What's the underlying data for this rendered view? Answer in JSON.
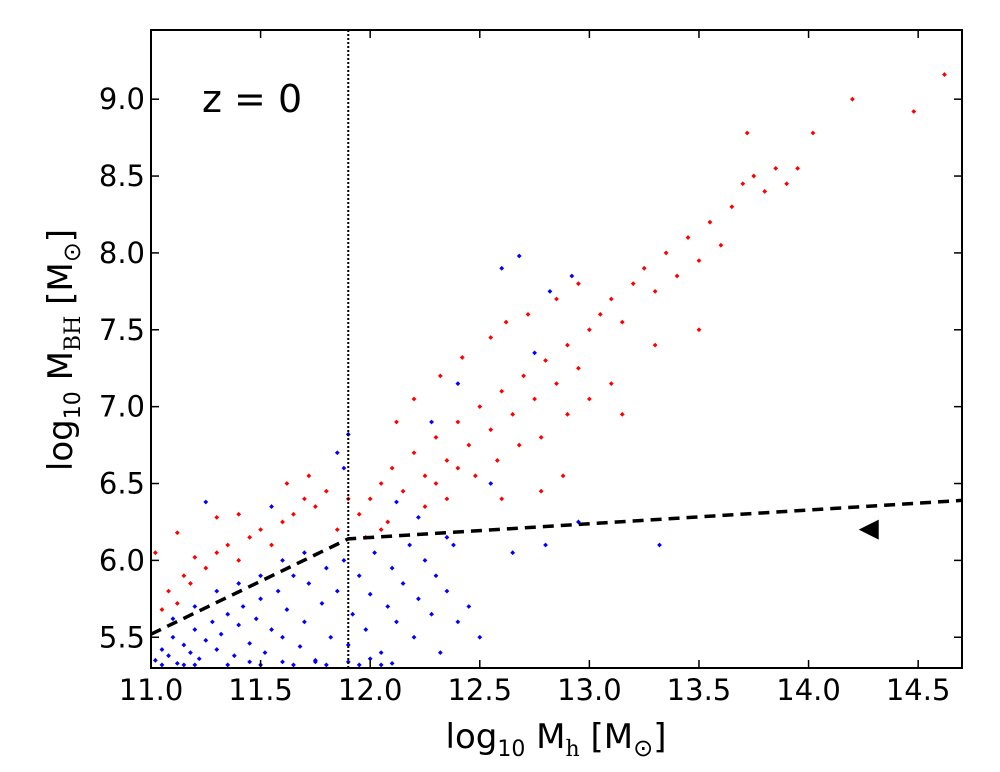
{
  "chart_data": {
    "type": "scatter",
    "annotation": "z = 0",
    "xlabel": {
      "main": "log",
      "sub1": "10",
      "mid": " M",
      "sub2": "h",
      "end": " [M",
      "sub3": "⊙",
      "close": "]"
    },
    "ylabel": {
      "main": "log",
      "sub1": "10",
      "mid": " M",
      "sub2": "BH",
      "end": " [M",
      "sub3": "⊙",
      "close": "]"
    },
    "xlim": [
      11.0,
      14.7
    ],
    "ylim": [
      5.3,
      9.45
    ],
    "xticks": [
      "11.0",
      "11.5",
      "12.0",
      "12.5",
      "13.0",
      "13.5",
      "14.0",
      "14.5"
    ],
    "yticks": [
      "5.5",
      "6.0",
      "6.5",
      "7.0",
      "7.5",
      "8.0",
      "8.5",
      "9.0"
    ],
    "vertical_line_x": 11.9,
    "threshold_line": {
      "style": "dashed",
      "points": [
        [
          11.0,
          5.52
        ],
        [
          11.9,
          6.14
        ],
        [
          14.7,
          6.39
        ]
      ]
    },
    "marker": {
      "shape": "left-triangle",
      "x": 14.32,
      "y": 6.2
    },
    "series": [
      {
        "name": "red",
        "color": "#ff0000",
        "points": [
          [
            11.05,
            5.68
          ],
          [
            11.08,
            5.8
          ],
          [
            11.12,
            5.72
          ],
          [
            11.15,
            5.9
          ],
          [
            11.2,
            6.02
          ],
          [
            11.18,
            5.85
          ],
          [
            11.25,
            5.95
          ],
          [
            11.3,
            6.05
          ],
          [
            11.35,
            6.1
          ],
          [
            11.4,
            6.0
          ],
          [
            11.45,
            6.15
          ],
          [
            11.5,
            6.2
          ],
          [
            11.55,
            6.1
          ],
          [
            11.6,
            6.25
          ],
          [
            11.65,
            6.3
          ],
          [
            11.7,
            6.4
          ],
          [
            11.75,
            6.35
          ],
          [
            11.8,
            6.45
          ],
          [
            11.85,
            6.2
          ],
          [
            11.62,
            6.5
          ],
          [
            11.4,
            6.3
          ],
          [
            11.3,
            6.28
          ],
          [
            11.12,
            6.18
          ],
          [
            11.02,
            6.05
          ],
          [
            11.72,
            6.55
          ],
          [
            11.9,
            6.4
          ],
          [
            11.95,
            6.3
          ],
          [
            12.0,
            6.4
          ],
          [
            12.05,
            6.5
          ],
          [
            12.1,
            6.6
          ],
          [
            12.15,
            6.45
          ],
          [
            12.2,
            6.7
          ],
          [
            12.25,
            6.55
          ],
          [
            12.3,
            6.8
          ],
          [
            12.35,
            6.65
          ],
          [
            12.4,
            6.9
          ],
          [
            12.45,
            6.75
          ],
          [
            12.5,
            7.0
          ],
          [
            12.55,
            6.85
          ],
          [
            12.6,
            7.1
          ],
          [
            12.65,
            6.95
          ],
          [
            12.7,
            7.2
          ],
          [
            12.75,
            7.05
          ],
          [
            12.8,
            7.3
          ],
          [
            12.85,
            7.15
          ],
          [
            12.9,
            7.4
          ],
          [
            12.95,
            7.25
          ],
          [
            13.0,
            7.5
          ],
          [
            13.05,
            7.6
          ],
          [
            13.1,
            7.7
          ],
          [
            13.15,
            7.55
          ],
          [
            13.2,
            7.8
          ],
          [
            13.25,
            7.9
          ],
          [
            13.3,
            7.75
          ],
          [
            13.35,
            8.0
          ],
          [
            13.4,
            7.85
          ],
          [
            13.45,
            8.1
          ],
          [
            13.5,
            7.95
          ],
          [
            13.55,
            8.2
          ],
          [
            13.6,
            8.05
          ],
          [
            13.65,
            8.3
          ],
          [
            13.7,
            8.45
          ],
          [
            13.75,
            8.5
          ],
          [
            13.8,
            8.4
          ],
          [
            13.85,
            8.55
          ],
          [
            13.9,
            8.45
          ],
          [
            13.95,
            8.55
          ],
          [
            14.02,
            8.78
          ],
          [
            14.2,
            9.0
          ],
          [
            14.48,
            8.92
          ],
          [
            14.62,
            9.16
          ],
          [
            13.72,
            8.78
          ],
          [
            12.12,
            6.9
          ],
          [
            12.2,
            7.05
          ],
          [
            12.32,
            7.2
          ],
          [
            12.42,
            7.32
          ],
          [
            12.55,
            7.45
          ],
          [
            12.62,
            7.55
          ],
          [
            12.72,
            7.6
          ],
          [
            12.85,
            7.7
          ],
          [
            12.95,
            7.8
          ],
          [
            12.48,
            6.55
          ],
          [
            12.58,
            6.65
          ],
          [
            12.68,
            6.75
          ],
          [
            12.78,
            6.8
          ],
          [
            12.9,
            6.95
          ],
          [
            13.0,
            7.05
          ],
          [
            13.1,
            7.15
          ],
          [
            13.15,
            6.95
          ],
          [
            13.3,
            7.4
          ],
          [
            13.5,
            7.5
          ],
          [
            12.25,
            6.35
          ],
          [
            12.35,
            6.4
          ],
          [
            12.05,
            6.2
          ],
          [
            11.98,
            6.15
          ],
          [
            12.08,
            6.25
          ],
          [
            12.3,
            6.5
          ],
          [
            12.4,
            6.6
          ],
          [
            12.6,
            6.4
          ],
          [
            12.78,
            6.45
          ],
          [
            12.88,
            6.55
          ]
        ]
      },
      {
        "name": "blue",
        "color": "#0000ff",
        "points": [
          [
            11.02,
            5.35
          ],
          [
            11.05,
            5.42
          ],
          [
            11.08,
            5.38
          ],
          [
            11.1,
            5.5
          ],
          [
            11.12,
            5.33
          ],
          [
            11.15,
            5.45
          ],
          [
            11.18,
            5.4
          ],
          [
            11.2,
            5.55
          ],
          [
            11.22,
            5.36
          ],
          [
            11.25,
            5.48
          ],
          [
            11.28,
            5.6
          ],
          [
            11.3,
            5.42
          ],
          [
            11.32,
            5.52
          ],
          [
            11.35,
            5.65
          ],
          [
            11.38,
            5.38
          ],
          [
            11.4,
            5.58
          ],
          [
            11.42,
            5.7
          ],
          [
            11.45,
            5.46
          ],
          [
            11.48,
            5.62
          ],
          [
            11.5,
            5.75
          ],
          [
            11.52,
            5.4
          ],
          [
            11.55,
            5.55
          ],
          [
            11.58,
            5.8
          ],
          [
            11.6,
            5.5
          ],
          [
            11.62,
            5.68
          ],
          [
            11.65,
            5.9
          ],
          [
            11.68,
            5.44
          ],
          [
            11.7,
            5.6
          ],
          [
            11.72,
            5.85
          ],
          [
            11.75,
            5.35
          ],
          [
            11.78,
            5.72
          ],
          [
            11.8,
            5.95
          ],
          [
            11.82,
            5.5
          ],
          [
            11.85,
            5.8
          ],
          [
            11.88,
            6.0
          ],
          [
            11.9,
            5.45
          ],
          [
            11.92,
            5.65
          ],
          [
            11.95,
            5.9
          ],
          [
            11.98,
            5.55
          ],
          [
            12.0,
            5.78
          ],
          [
            12.02,
            6.05
          ],
          [
            12.05,
            5.4
          ],
          [
            12.08,
            5.7
          ],
          [
            12.1,
            5.95
          ],
          [
            12.12,
            5.6
          ],
          [
            12.15,
            5.85
          ],
          [
            12.18,
            6.1
          ],
          [
            12.2,
            5.5
          ],
          [
            12.22,
            5.75
          ],
          [
            12.25,
            6.0
          ],
          [
            12.28,
            5.65
          ],
          [
            12.3,
            5.9
          ],
          [
            12.32,
            5.4
          ],
          [
            12.35,
            5.8
          ],
          [
            12.38,
            6.1
          ],
          [
            12.4,
            5.6
          ],
          [
            12.45,
            5.7
          ],
          [
            12.5,
            5.5
          ],
          [
            11.1,
            5.62
          ],
          [
            11.2,
            5.7
          ],
          [
            11.3,
            5.8
          ],
          [
            11.4,
            5.85
          ],
          [
            11.5,
            5.9
          ],
          [
            11.6,
            6.0
          ],
          [
            11.7,
            6.05
          ],
          [
            11.45,
            5.34
          ],
          [
            11.6,
            5.34
          ],
          [
            11.75,
            5.34
          ],
          [
            11.9,
            5.34
          ],
          [
            12.0,
            5.36
          ],
          [
            12.1,
            5.33
          ],
          [
            11.25,
            6.38
          ],
          [
            11.55,
            6.35
          ],
          [
            11.85,
            6.7
          ],
          [
            11.9,
            6.82
          ],
          [
            11.88,
            6.6
          ],
          [
            12.6,
            7.9
          ],
          [
            12.68,
            7.98
          ],
          [
            12.82,
            7.75
          ],
          [
            12.92,
            7.85
          ],
          [
            12.75,
            7.35
          ],
          [
            12.28,
            6.9
          ],
          [
            12.4,
            7.15
          ],
          [
            12.55,
            6.5
          ],
          [
            12.65,
            6.05
          ],
          [
            12.8,
            6.1
          ],
          [
            13.32,
            6.1
          ],
          [
            12.95,
            6.25
          ],
          [
            11.35,
            5.32
          ],
          [
            11.5,
            5.32
          ],
          [
            11.65,
            5.32
          ],
          [
            11.8,
            5.32
          ],
          [
            11.95,
            5.32
          ],
          [
            12.05,
            5.32
          ],
          [
            11.2,
            5.32
          ],
          [
            11.05,
            5.32
          ],
          [
            11.15,
            5.32
          ],
          [
            12.22,
            6.28
          ],
          [
            12.12,
            6.38
          ],
          [
            12.35,
            6.15
          ]
        ]
      }
    ]
  }
}
